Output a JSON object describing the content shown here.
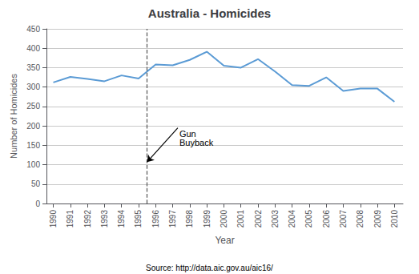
{
  "chart_data": {
    "type": "line",
    "title": "Australia - Homicides",
    "xlabel": "Year",
    "ylabel": "Number of Homicides",
    "source": "Source: http://data.aic.gov.au/aic16/",
    "x": [
      1990,
      1991,
      1992,
      1993,
      1994,
      1995,
      1996,
      1997,
      1998,
      1999,
      2000,
      2001,
      2002,
      2003,
      2004,
      2005,
      2006,
      2007,
      2008,
      2009,
      2010
    ],
    "values": [
      312,
      326,
      321,
      315,
      330,
      322,
      358,
      356,
      370,
      391,
      355,
      350,
      372,
      340,
      305,
      303,
      325,
      290,
      296,
      296,
      262
    ],
    "color": "#5B9BD5",
    "xlim": [
      1989.6,
      2010.5
    ],
    "xticks": [
      1990,
      1991,
      1992,
      1993,
      1994,
      1995,
      1996,
      1997,
      1998,
      1999,
      2000,
      2001,
      2002,
      2003,
      2004,
      2005,
      2006,
      2007,
      2008,
      2009,
      2010
    ],
    "ylim": [
      0,
      450
    ],
    "yticks": [
      0,
      50,
      100,
      150,
      200,
      250,
      300,
      350,
      400,
      450
    ],
    "grid": true,
    "vlines": [
      {
        "x": 1995.5,
        "color": "#555555",
        "line_style": "dashed"
      }
    ],
    "annotations": [
      {
        "text": "Gun\nBuyback",
        "x": 1997.3,
        "y": 195,
        "arrow_x": 1995.5,
        "arrow_y": 107
      }
    ]
  }
}
